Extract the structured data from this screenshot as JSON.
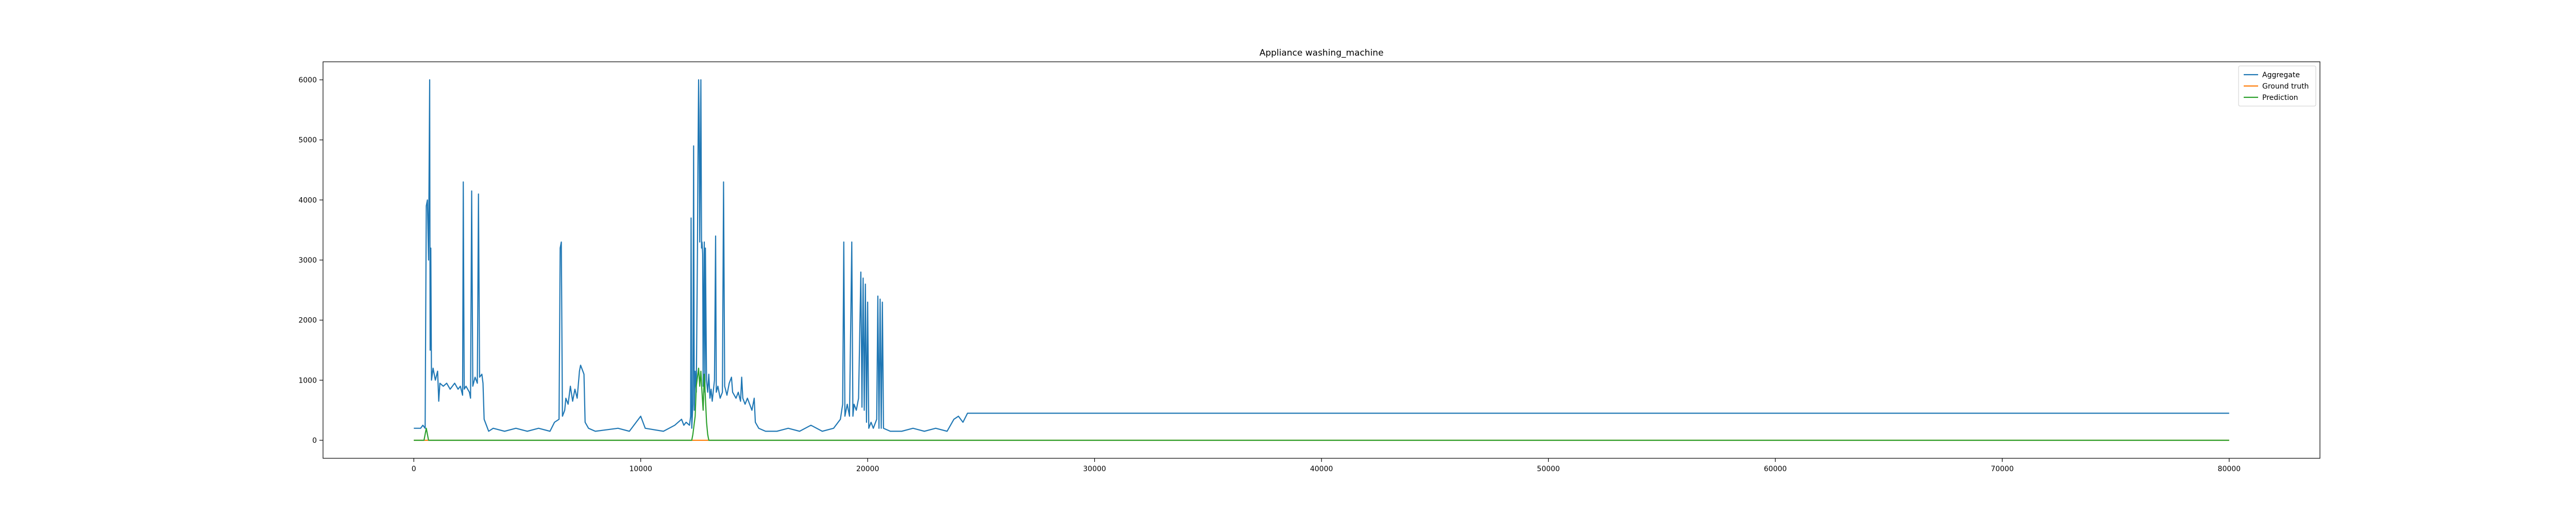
{
  "chart_data": {
    "type": "line",
    "title": "Appliance washing_machine",
    "xlabel": "",
    "ylabel": "",
    "xlim": [
      -4000,
      84000
    ],
    "ylim": [
      -300,
      6300
    ],
    "x_ticks": [
      0,
      10000,
      20000,
      30000,
      40000,
      50000,
      60000,
      70000,
      80000
    ],
    "y_ticks": [
      0,
      1000,
      2000,
      3000,
      4000,
      5000,
      6000
    ],
    "grid": false,
    "legend_position": "top-right",
    "series": [
      {
        "name": "Aggregate",
        "color": "#1f77b4",
        "points": [
          [
            0,
            200
          ],
          [
            300,
            200
          ],
          [
            400,
            250
          ],
          [
            500,
            200
          ],
          [
            550,
            3900
          ],
          [
            600,
            4000
          ],
          [
            650,
            3000
          ],
          [
            700,
            6000
          ],
          [
            720,
            1500
          ],
          [
            750,
            3200
          ],
          [
            780,
            1000
          ],
          [
            850,
            1200
          ],
          [
            950,
            1000
          ],
          [
            1050,
            1150
          ],
          [
            1100,
            650
          ],
          [
            1150,
            950
          ],
          [
            1300,
            900
          ],
          [
            1450,
            950
          ],
          [
            1600,
            850
          ],
          [
            1800,
            950
          ],
          [
            1950,
            850
          ],
          [
            2050,
            900
          ],
          [
            2150,
            750
          ],
          [
            2180,
            4300
          ],
          [
            2220,
            850
          ],
          [
            2300,
            900
          ],
          [
            2450,
            800
          ],
          [
            2500,
            700
          ],
          [
            2550,
            4150
          ],
          [
            2600,
            900
          ],
          [
            2700,
            1050
          ],
          [
            2800,
            950
          ],
          [
            2850,
            4100
          ],
          [
            2900,
            1050
          ],
          [
            3000,
            1100
          ],
          [
            3050,
            950
          ],
          [
            3100,
            350
          ],
          [
            3200,
            250
          ],
          [
            3300,
            150
          ],
          [
            3500,
            200
          ],
          [
            4000,
            150
          ],
          [
            4500,
            200
          ],
          [
            5000,
            150
          ],
          [
            5500,
            200
          ],
          [
            6000,
            150
          ],
          [
            6200,
            300
          ],
          [
            6400,
            350
          ],
          [
            6450,
            3200
          ],
          [
            6500,
            3300
          ],
          [
            6550,
            400
          ],
          [
            6650,
            500
          ],
          [
            6700,
            700
          ],
          [
            6800,
            600
          ],
          [
            6900,
            900
          ],
          [
            7000,
            650
          ],
          [
            7100,
            850
          ],
          [
            7200,
            700
          ],
          [
            7300,
            1150
          ],
          [
            7350,
            1250
          ],
          [
            7450,
            1150
          ],
          [
            7500,
            1100
          ],
          [
            7550,
            300
          ],
          [
            7700,
            200
          ],
          [
            8000,
            150
          ],
          [
            9000,
            200
          ],
          [
            9500,
            150
          ],
          [
            10000,
            400
          ],
          [
            10200,
            200
          ],
          [
            11000,
            150
          ],
          [
            11500,
            250
          ],
          [
            11800,
            350
          ],
          [
            11900,
            250
          ],
          [
            12000,
            300
          ],
          [
            12150,
            250
          ],
          [
            12200,
            400
          ],
          [
            12220,
            3700
          ],
          [
            12250,
            200
          ],
          [
            12300,
            600
          ],
          [
            12330,
            4900
          ],
          [
            12360,
            500
          ],
          [
            12400,
            1150
          ],
          [
            12450,
            800
          ],
          [
            12500,
            3200
          ],
          [
            12520,
            4500
          ],
          [
            12550,
            6000
          ],
          [
            12570,
            5500
          ],
          [
            12600,
            3300
          ],
          [
            12650,
            6000
          ],
          [
            12680,
            3200
          ],
          [
            12700,
            3300
          ],
          [
            12730,
            3100
          ],
          [
            12750,
            900
          ],
          [
            12800,
            3300
          ],
          [
            12830,
            800
          ],
          [
            12850,
            3200
          ],
          [
            12900,
            1000
          ],
          [
            12950,
            800
          ],
          [
            13000,
            1100
          ],
          [
            13050,
            700
          ],
          [
            13100,
            850
          ],
          [
            13150,
            650
          ],
          [
            13250,
            1000
          ],
          [
            13300,
            3400
          ],
          [
            13330,
            800
          ],
          [
            13400,
            900
          ],
          [
            13500,
            700
          ],
          [
            13600,
            800
          ],
          [
            13650,
            4300
          ],
          [
            13700,
            900
          ],
          [
            13800,
            750
          ],
          [
            13900,
            950
          ],
          [
            14000,
            1050
          ],
          [
            14050,
            800
          ],
          [
            14200,
            700
          ],
          [
            14300,
            800
          ],
          [
            14400,
            650
          ],
          [
            14450,
            1050
          ],
          [
            14500,
            700
          ],
          [
            14600,
            600
          ],
          [
            14700,
            700
          ],
          [
            14800,
            600
          ],
          [
            14900,
            500
          ],
          [
            15000,
            700
          ],
          [
            15050,
            300
          ],
          [
            15200,
            200
          ],
          [
            15500,
            150
          ],
          [
            16000,
            150
          ],
          [
            16500,
            200
          ],
          [
            17000,
            150
          ],
          [
            17500,
            250
          ],
          [
            18000,
            150
          ],
          [
            18500,
            200
          ],
          [
            18800,
            350
          ],
          [
            18900,
            600
          ],
          [
            18950,
            3300
          ],
          [
            19000,
            400
          ],
          [
            19100,
            600
          ],
          [
            19200,
            400
          ],
          [
            19300,
            3300
          ],
          [
            19350,
            400
          ],
          [
            19400,
            600
          ],
          [
            19500,
            500
          ],
          [
            19600,
            700
          ],
          [
            19700,
            2800
          ],
          [
            19750,
            550
          ],
          [
            19800,
            2700
          ],
          [
            19850,
            500
          ],
          [
            19900,
            2600
          ],
          [
            19950,
            300
          ],
          [
            20000,
            2300
          ],
          [
            20050,
            200
          ],
          [
            20150,
            300
          ],
          [
            20250,
            200
          ],
          [
            20400,
            350
          ],
          [
            20450,
            2400
          ],
          [
            20500,
            200
          ],
          [
            20550,
            2350
          ],
          [
            20600,
            200
          ],
          [
            20650,
            2300
          ],
          [
            20700,
            200
          ],
          [
            21000,
            150
          ],
          [
            21500,
            150
          ],
          [
            22000,
            200
          ],
          [
            22500,
            150
          ],
          [
            23000,
            200
          ],
          [
            23500,
            150
          ],
          [
            23800,
            350
          ],
          [
            24000,
            400
          ],
          [
            24200,
            300
          ],
          [
            24400,
            450
          ],
          [
            24500,
            450
          ],
          [
            80000,
            450
          ]
        ]
      },
      {
        "name": "Ground truth",
        "color": "#ff7f0e",
        "points": [
          [
            0,
            0
          ],
          [
            80000,
            0
          ]
        ]
      },
      {
        "name": "Prediction",
        "color": "#2ca02c",
        "points": [
          [
            0,
            0
          ],
          [
            450,
            0
          ],
          [
            500,
            100
          ],
          [
            550,
            200
          ],
          [
            600,
            100
          ],
          [
            650,
            0
          ],
          [
            12250,
            0
          ],
          [
            12300,
            100
          ],
          [
            12400,
            400
          ],
          [
            12450,
            900
          ],
          [
            12500,
            1050
          ],
          [
            12550,
            1200
          ],
          [
            12600,
            900
          ],
          [
            12650,
            1150
          ],
          [
            12700,
            800
          ],
          [
            12750,
            500
          ],
          [
            12800,
            1100
          ],
          [
            12850,
            700
          ],
          [
            12900,
            300
          ],
          [
            12950,
            100
          ],
          [
            13000,
            0
          ],
          [
            80000,
            0
          ]
        ]
      }
    ]
  }
}
